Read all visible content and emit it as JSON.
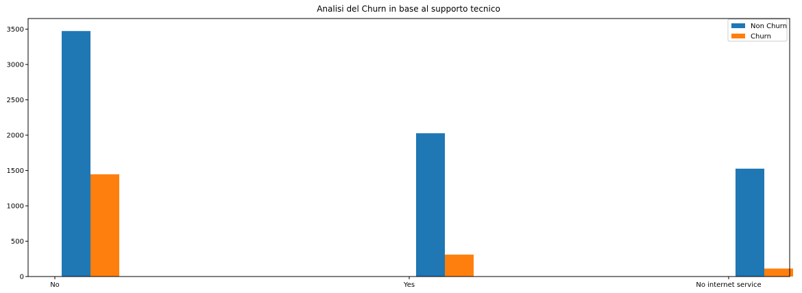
{
  "chart_data": {
    "type": "bar",
    "title": "Analisi del Churn in base al supporto tecnico",
    "xlabel": "",
    "ylabel": "",
    "categories": [
      "No",
      "Yes",
      "No internet service"
    ],
    "series": [
      {
        "name": "Non Churn",
        "color": "#1f77b4",
        "values": [
          3473,
          2027,
          1526
        ]
      },
      {
        "name": "Churn",
        "color": "#ff7f0e",
        "values": [
          1446,
          310,
          113
        ]
      }
    ],
    "ylim": [
      0,
      3650
    ],
    "yticks": [
      0,
      500,
      1000,
      1500,
      2000,
      2500,
      3000,
      3500
    ],
    "grid": false,
    "legend_position": "top-right"
  }
}
